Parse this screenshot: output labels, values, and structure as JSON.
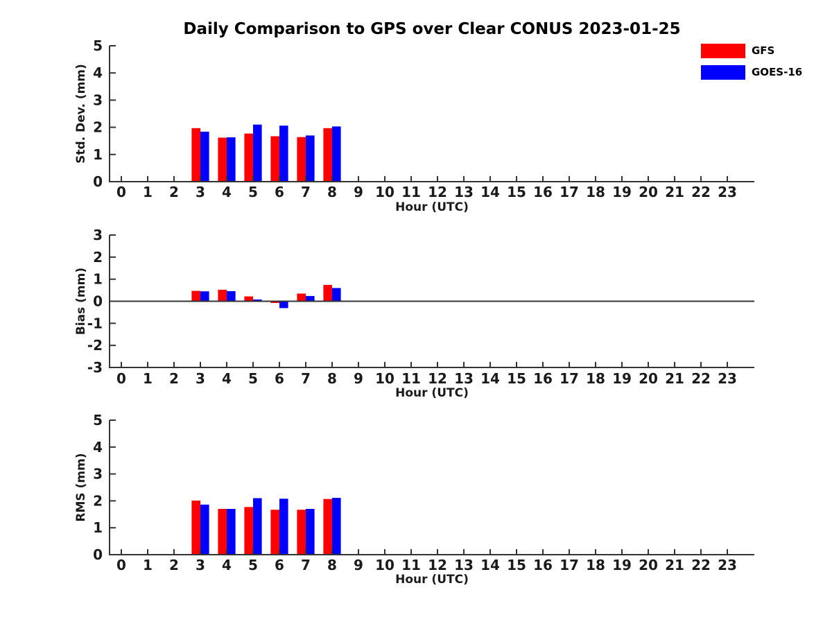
{
  "figure": {
    "title": "Daily Comparison to GPS over Clear CONUS 2023-01-25",
    "background_color": "#ffffff",
    "axis_color": "#333333",
    "text_color": "#1a1a1a"
  },
  "legend": {
    "position": "top-right",
    "items": [
      {
        "label": "GFS",
        "color": "#ff0000"
      },
      {
        "label": "GOES-16",
        "color": "#0000ff"
      }
    ]
  },
  "chart_data": [
    {
      "type": "bar",
      "name": "std-dev",
      "ylabel": "Std. Dev. (mm)",
      "xlabel": "Hour (UTC)",
      "ylim": [
        0,
        5
      ],
      "yticks": [
        0,
        1,
        2,
        3,
        4,
        5
      ],
      "grid": false,
      "categories": [
        0,
        1,
        2,
        3,
        4,
        5,
        6,
        7,
        8,
        9,
        10,
        11,
        12,
        13,
        14,
        15,
        16,
        17,
        18,
        19,
        20,
        21,
        22,
        23
      ],
      "series": [
        {
          "name": "GFS",
          "color": "#ff0000",
          "values": [
            null,
            null,
            null,
            1.97,
            1.62,
            1.77,
            1.67,
            1.64,
            1.97,
            null,
            null,
            null,
            null,
            null,
            null,
            null,
            null,
            null,
            null,
            null,
            null,
            null,
            null,
            null
          ]
        },
        {
          "name": "GOES-16",
          "color": "#0000ff",
          "values": [
            null,
            null,
            null,
            1.84,
            1.63,
            2.1,
            2.06,
            1.7,
            2.03,
            null,
            null,
            null,
            null,
            null,
            null,
            null,
            null,
            null,
            null,
            null,
            null,
            null,
            null,
            null
          ]
        }
      ]
    },
    {
      "type": "bar",
      "name": "bias",
      "ylabel": "Bias (mm)",
      "xlabel": "Hour (UTC)",
      "ylim": [
        -3,
        3
      ],
      "yticks": [
        -3,
        -2,
        -1,
        0,
        1,
        2,
        3
      ],
      "zero_line": true,
      "grid": false,
      "categories": [
        0,
        1,
        2,
        3,
        4,
        5,
        6,
        7,
        8,
        9,
        10,
        11,
        12,
        13,
        14,
        15,
        16,
        17,
        18,
        19,
        20,
        21,
        22,
        23
      ],
      "series": [
        {
          "name": "GFS",
          "color": "#ff0000",
          "values": [
            null,
            null,
            null,
            0.47,
            0.52,
            0.22,
            -0.08,
            0.35,
            0.74,
            null,
            null,
            null,
            null,
            null,
            null,
            null,
            null,
            null,
            null,
            null,
            null,
            null,
            null,
            null
          ]
        },
        {
          "name": "GOES-16",
          "color": "#0000ff",
          "values": [
            null,
            null,
            null,
            0.45,
            0.46,
            0.08,
            -0.31,
            0.24,
            0.6,
            null,
            null,
            null,
            null,
            null,
            null,
            null,
            null,
            null,
            null,
            null,
            null,
            null,
            null,
            null
          ]
        }
      ]
    },
    {
      "type": "bar",
      "name": "rms",
      "ylabel": "RMS (mm)",
      "xlabel": "Hour (UTC)",
      "ylim": [
        0,
        5
      ],
      "yticks": [
        0,
        1,
        2,
        3,
        4,
        5
      ],
      "grid": false,
      "categories": [
        0,
        1,
        2,
        3,
        4,
        5,
        6,
        7,
        8,
        9,
        10,
        11,
        12,
        13,
        14,
        15,
        16,
        17,
        18,
        19,
        20,
        21,
        22,
        23
      ],
      "series": [
        {
          "name": "GFS",
          "color": "#ff0000",
          "values": [
            null,
            null,
            null,
            2.01,
            1.7,
            1.77,
            1.67,
            1.67,
            2.07,
            null,
            null,
            null,
            null,
            null,
            null,
            null,
            null,
            null,
            null,
            null,
            null,
            null,
            null,
            null
          ]
        },
        {
          "name": "GOES-16",
          "color": "#0000ff",
          "values": [
            null,
            null,
            null,
            1.86,
            1.7,
            2.1,
            2.08,
            1.7,
            2.11,
            null,
            null,
            null,
            null,
            null,
            null,
            null,
            null,
            null,
            null,
            null,
            null,
            null,
            null,
            null
          ]
        }
      ]
    }
  ]
}
